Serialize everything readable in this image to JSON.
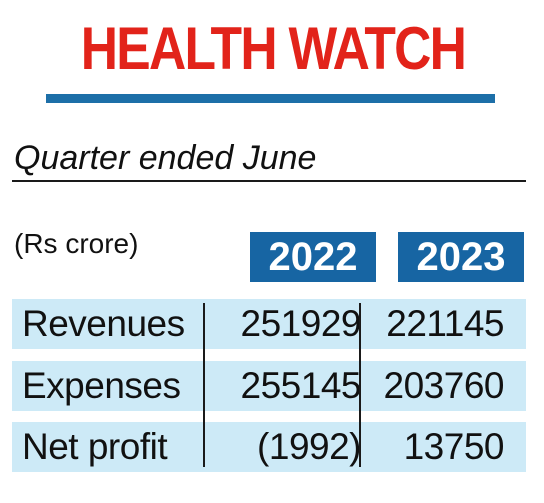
{
  "title": "HEALTH WATCH",
  "subtitle": "Quarter ended June",
  "unit": "(Rs crore)",
  "colors": {
    "title": "#e2231a",
    "rule": "#1d6fa8",
    "header_bg": "#1765a3",
    "row_bg": "#cdeaf7"
  },
  "chart_data": {
    "type": "table",
    "title": "HEALTH WATCH",
    "subtitle": "Quarter ended June",
    "unit": "(Rs crore)",
    "columns": [
      "2022",
      "2023"
    ],
    "rows": [
      {
        "label": "Revenues",
        "values": [
          "251929",
          "221145"
        ]
      },
      {
        "label": "Expenses",
        "values": [
          "255145",
          "203760"
        ]
      },
      {
        "label": "Net profit",
        "values": [
          "(1992)",
          "13750"
        ]
      }
    ]
  }
}
